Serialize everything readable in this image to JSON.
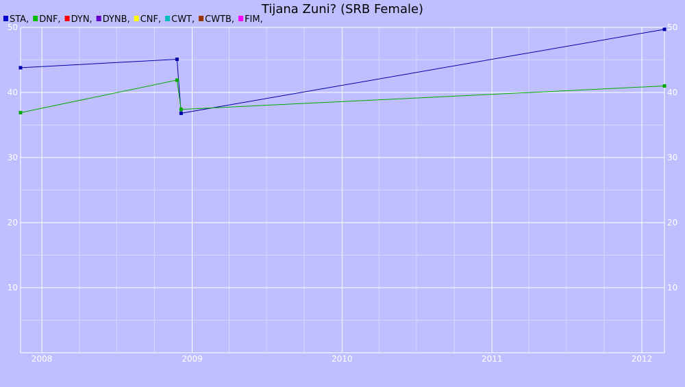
{
  "chart_data": {
    "type": "line",
    "title": "Tijana Zuni? (SRB Female)",
    "xlabel": "",
    "ylabel": "",
    "ylim": [
      0,
      50
    ],
    "xlim": [
      "2007-11-10",
      "2012-02-25"
    ],
    "grid": true,
    "legend_position": "top-left",
    "x_ticks": [
      {
        "label": "2008",
        "date": "2008-01-01"
      },
      {
        "label": "2009",
        "date": "2009-01-01"
      },
      {
        "label": "2010",
        "date": "2010-01-01"
      },
      {
        "label": "2011",
        "date": "2011-01-01"
      },
      {
        "label": "2012",
        "date": "2012-01-01"
      }
    ],
    "y_ticks": [
      10,
      20,
      30,
      40,
      50
    ],
    "legend": [
      {
        "name": "STA,",
        "color": "#0000cc"
      },
      {
        "name": "DNF,",
        "color": "#00bb00"
      },
      {
        "name": "DYN,",
        "color": "#ff0000"
      },
      {
        "name": "DYNB,",
        "color": "#6600cc"
      },
      {
        "name": "CNF,",
        "color": "#ffff00"
      },
      {
        "name": "CWT,",
        "color": "#00bbbb"
      },
      {
        "name": "CWTB,",
        "color": "#993300"
      },
      {
        "name": "FIM,",
        "color": "#ff00ff"
      }
    ],
    "series": [
      {
        "color": "#0000aa",
        "points": [
          {
            "x": "2007-11-10",
            "y": 43.8
          },
          {
            "x": "2008-11-25",
            "y": 45.1
          },
          {
            "x": "2008-12-05",
            "y": 36.8
          },
          {
            "x": "2012-02-25",
            "y": 49.7
          }
        ]
      },
      {
        "color": "#00aa00",
        "points": [
          {
            "x": "2007-11-10",
            "y": 36.9
          },
          {
            "x": "2008-11-25",
            "y": 41.9
          },
          {
            "x": "2008-12-05",
            "y": 37.4
          },
          {
            "x": "2012-02-25",
            "y": 41.0
          }
        ]
      }
    ]
  }
}
